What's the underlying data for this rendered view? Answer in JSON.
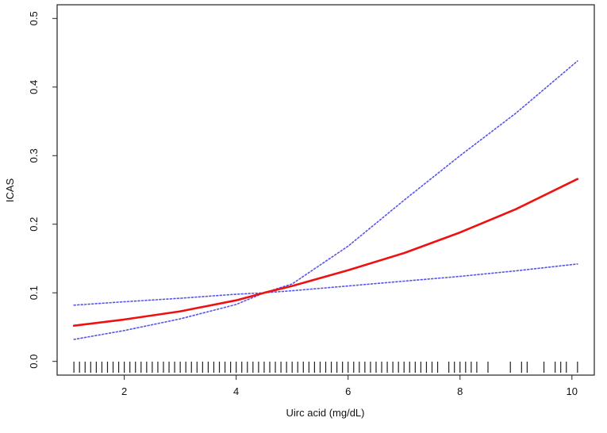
{
  "chart_data": {
    "type": "line",
    "title": "",
    "xlabel": "Uirc acid (mg/dL)",
    "ylabel": "ICAS",
    "xlim": [
      0.8,
      10.4
    ],
    "ylim": [
      -0.02,
      0.52
    ],
    "xticks": [
      2,
      4,
      6,
      8,
      10
    ],
    "yticks": [
      0.0,
      0.1,
      0.2,
      0.3,
      0.4,
      0.5
    ],
    "xtick_labels": [
      "2",
      "4",
      "6",
      "8",
      "10"
    ],
    "ytick_labels": [
      "0.0",
      "0.1",
      "0.2",
      "0.3",
      "0.4",
      "0.5"
    ],
    "grid": false,
    "legend": "none",
    "series": [
      {
        "role": "estimate",
        "color": "#ee1111",
        "style": "solid",
        "x": [
          1.1,
          2,
          3,
          4,
          4.5,
          5,
          6,
          7,
          8,
          9,
          10.1
        ],
        "y": [
          0.052,
          0.061,
          0.073,
          0.089,
          0.1,
          0.11,
          0.133,
          0.158,
          0.188,
          0.222,
          0.266
        ]
      },
      {
        "role": "upper-bound",
        "color": "#5555ee",
        "style": "dotted",
        "x": [
          1.1,
          2,
          3,
          4,
          4.5,
          5,
          6,
          7,
          8,
          9,
          10.1
        ],
        "y": [
          0.082,
          0.087,
          0.092,
          0.098,
          0.1,
          0.113,
          0.168,
          0.235,
          0.3,
          0.362,
          0.438
        ]
      },
      {
        "role": "lower-bound",
        "color": "#5555ee",
        "style": "dotted",
        "x": [
          1.1,
          2,
          3,
          4,
          4.5,
          5,
          6,
          7,
          8,
          9,
          10.1
        ],
        "y": [
          0.032,
          0.045,
          0.062,
          0.083,
          0.1,
          0.103,
          0.11,
          0.117,
          0.124,
          0.132,
          0.142
        ]
      }
    ],
    "rug": [
      1.1,
      1.2,
      1.3,
      1.4,
      1.5,
      1.6,
      1.7,
      1.8,
      1.9,
      2.0,
      2.1,
      2.2,
      2.3,
      2.4,
      2.5,
      2.6,
      2.7,
      2.8,
      2.9,
      3.0,
      3.1,
      3.2,
      3.3,
      3.4,
      3.5,
      3.6,
      3.7,
      3.8,
      3.9,
      4.0,
      4.1,
      4.2,
      4.3,
      4.4,
      4.5,
      4.6,
      4.7,
      4.8,
      4.9,
      5.0,
      5.1,
      5.2,
      5.3,
      5.4,
      5.5,
      5.6,
      5.7,
      5.8,
      5.9,
      6.0,
      6.1,
      6.2,
      6.3,
      6.4,
      6.5,
      6.6,
      6.7,
      6.8,
      6.9,
      7.0,
      7.1,
      7.2,
      7.3,
      7.4,
      7.5,
      7.6,
      7.8,
      7.9,
      8.0,
      8.1,
      8.2,
      8.3,
      8.5,
      8.9,
      9.1,
      9.2,
      9.5,
      9.7,
      9.8,
      9.9,
      10.1
    ]
  }
}
